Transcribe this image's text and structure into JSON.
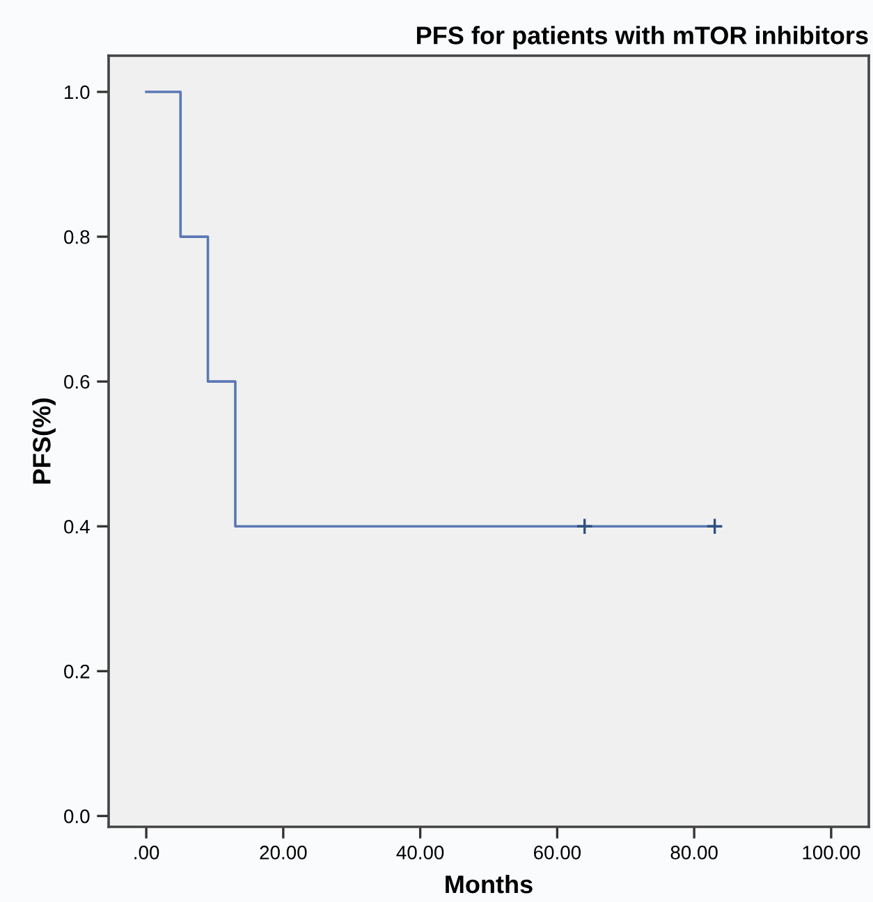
{
  "chart_data": {
    "type": "step",
    "title": "PFS for patients with mTOR inhibitors",
    "xlabel": "Months",
    "ylabel": "PFS(%)",
    "series": [
      {
        "color": "#5a78b4",
        "x": [
          0,
          5,
          9,
          13,
          83
        ],
        "values": [
          1.0,
          0.8,
          0.6,
          0.4,
          0.4
        ],
        "marker": "none"
      },
      {
        "type": "scatter",
        "color": "#2f4f7f",
        "x": [
          64,
          83
        ],
        "values": [
          0.4,
          0.4
        ],
        "marker": "cross"
      }
    ],
    "xlim": [
      -5.5,
      105.5
    ],
    "ylim": [
      -0.015,
      1.05
    ],
    "xticks": [
      {
        "value": 0,
        "label": ".00"
      },
      {
        "value": 20,
        "label": "20.00"
      },
      {
        "value": 40,
        "label": "40.00"
      },
      {
        "value": 60,
        "label": "60.00"
      },
      {
        "value": 80,
        "label": "80.00"
      },
      {
        "value": 100,
        "label": "100.00"
      }
    ],
    "yticks": [
      {
        "value": 0,
        "label": "0.0"
      },
      {
        "value": 0.2,
        "label": "0.2"
      },
      {
        "value": 0.4,
        "label": "0.4"
      },
      {
        "value": 0.6,
        "label": "0.6"
      },
      {
        "value": 0.8,
        "label": "0.8"
      },
      {
        "value": 1.0,
        "label": "1.0"
      }
    ],
    "grid": false,
    "legend": false
  }
}
